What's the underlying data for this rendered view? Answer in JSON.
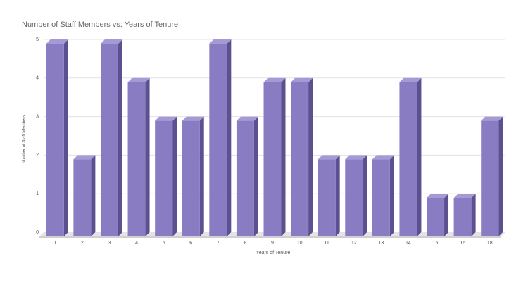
{
  "chart_data": {
    "type": "bar3d",
    "title": "Number of Staff Members vs. Years of Tenure",
    "x_label": "Years of Tenure",
    "y_label": "Number of Staff Members",
    "categories": [
      "1",
      "2",
      "3",
      "4",
      "5",
      "6",
      "7",
      "8",
      "9",
      "10",
      "11",
      "12",
      "13",
      "14",
      "15",
      "16",
      "18"
    ],
    "values": [
      5,
      2,
      5,
      4,
      3,
      3,
      5,
      3,
      4,
      4,
      2,
      2,
      2,
      4,
      1,
      1,
      3
    ],
    "color": "#8a7cc3",
    "ylim": [
      0,
      5
    ],
    "yticks": [
      0,
      1,
      2,
      3,
      4,
      5
    ],
    "grid": true
  }
}
